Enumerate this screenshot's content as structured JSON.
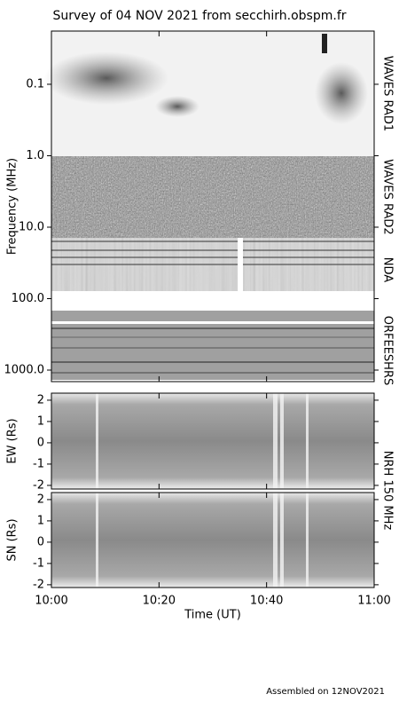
{
  "title": "Survey of 04 NOV 2021 from secchirh.obspm.fr",
  "footer": "Assembled on 12NOV2021",
  "chart_data": [
    {
      "type": "spectrogram",
      "ylabel": "Frequency (MHz)",
      "log": true,
      "inverted": true,
      "ylim": [
        0.018,
        1450
      ],
      "yticks": [
        {
          "value": 0.1,
          "label": "0.1"
        },
        {
          "value": 1,
          "label": "1.0"
        },
        {
          "value": 10,
          "label": "10.0"
        },
        {
          "value": 100,
          "label": "100.0"
        },
        {
          "value": 1000,
          "label": "1000.0"
        }
      ],
      "xlim": [
        600,
        660
      ],
      "xticks": [
        600,
        620,
        640,
        660
      ],
      "instruments": [
        "WAVES RAD1",
        "WAVES RAD2",
        "NDA",
        "ORFEESHRS"
      ]
    },
    {
      "type": "spectrogram",
      "ylabel": "EW (Rs)",
      "ylim": [
        -2.17,
        2.33
      ],
      "yticks": [
        -2,
        -1,
        0,
        1,
        2
      ],
      "xlim": [
        600,
        660
      ],
      "xticks": [
        600,
        620,
        640,
        660
      ],
      "instrument": "NRH 150 MHz"
    },
    {
      "type": "spectrogram",
      "ylabel": "SN (Rs)",
      "ylim": [
        -2.13,
        2.33
      ],
      "yticks": [
        -2,
        -1,
        0,
        1,
        2
      ],
      "xlim": [
        600,
        660
      ],
      "xticks": [
        {
          "value": 600,
          "label": "10:00"
        },
        {
          "value": 620,
          "label": "10:20"
        },
        {
          "value": 640,
          "label": "10:40"
        },
        {
          "value": 660,
          "label": "11:00"
        }
      ],
      "xlabel": "Time (UT)"
    }
  ]
}
